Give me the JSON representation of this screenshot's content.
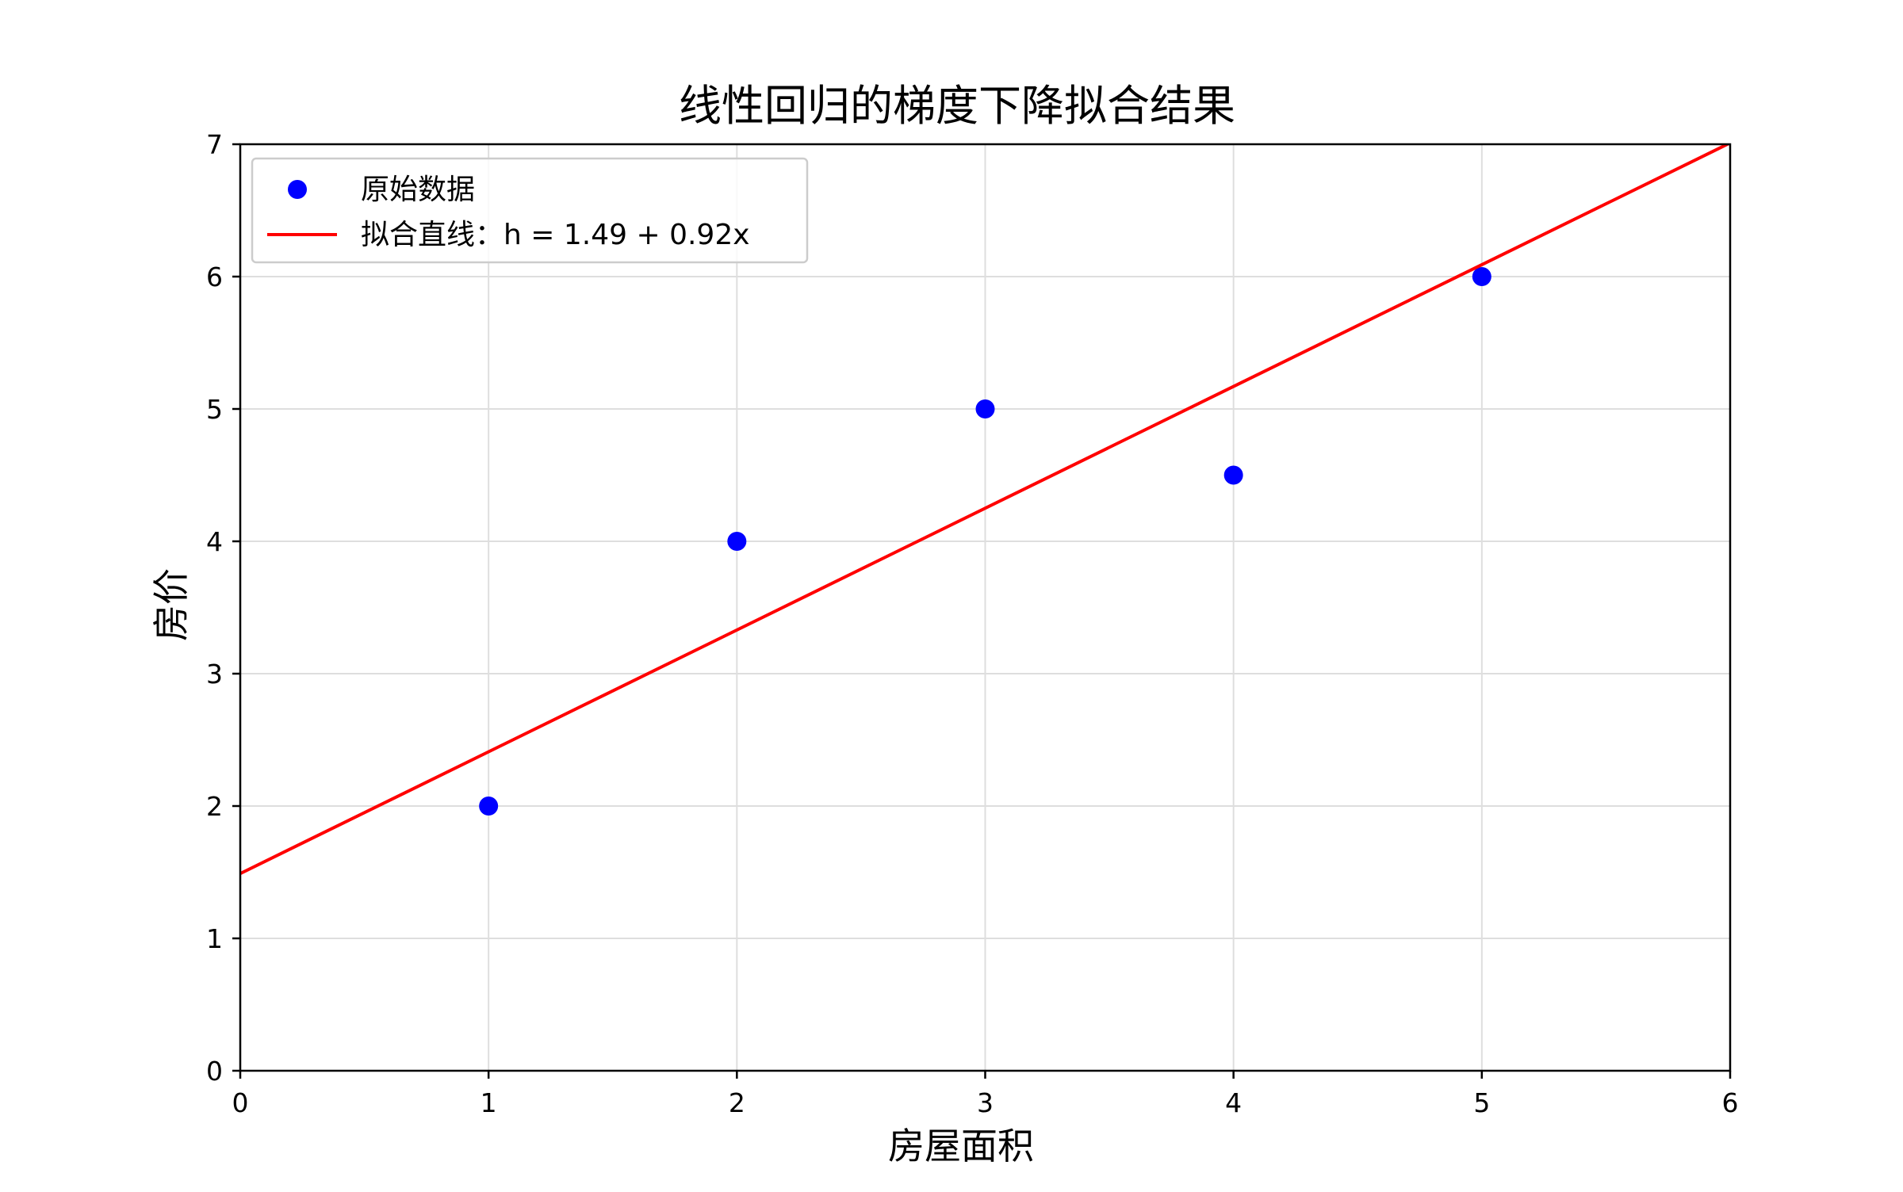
{
  "chart_data": {
    "type": "scatter",
    "title": "线性回归的梯度下降拟合结果",
    "xlabel": "房屋面积",
    "ylabel": "房价",
    "xlim": [
      0,
      6
    ],
    "ylim": [
      0,
      7
    ],
    "xticks": [
      0,
      1,
      2,
      3,
      4,
      5,
      6
    ],
    "yticks": [
      0,
      1,
      2,
      3,
      4,
      5,
      6,
      7
    ],
    "grid": true,
    "legend_position": "upper-left",
    "series": [
      {
        "name": "原始数据",
        "kind": "scatter",
        "color": "#0000ff",
        "x": [
          1,
          2,
          3,
          4,
          5
        ],
        "y": [
          2,
          4,
          5,
          4.5,
          6
        ]
      },
      {
        "name": "拟合直线：h = 1.49 + 0.92x",
        "kind": "line",
        "color": "#ff0000",
        "intercept": 1.49,
        "slope": 0.92,
        "x": [
          0,
          6
        ],
        "y": [
          1.49,
          7.01
        ]
      }
    ]
  }
}
